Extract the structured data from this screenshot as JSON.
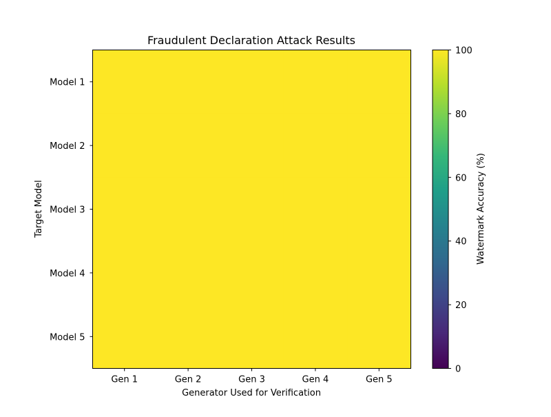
{
  "chart_data": {
    "type": "heatmap",
    "title": "Fraudulent Declaration Attack Results",
    "xlabel": "Generator Used for Verification",
    "ylabel": "Target Model",
    "x_categories": [
      "Gen 1",
      "Gen 2",
      "Gen 3",
      "Gen 4",
      "Gen 5"
    ],
    "y_categories": [
      "Model 1",
      "Model 2",
      "Model 3",
      "Model 4",
      "Model 5"
    ],
    "values": [
      [
        100,
        100,
        100,
        100,
        100
      ],
      [
        100,
        100,
        100,
        100,
        100
      ],
      [
        100,
        100,
        100,
        100,
        100
      ],
      [
        100,
        100,
        100,
        100,
        100
      ],
      [
        100,
        100,
        100,
        100,
        100
      ]
    ],
    "colorbar": {
      "label": "Watermark Accuracy (%)",
      "range": [
        0,
        100
      ],
      "ticks": [
        0,
        20,
        40,
        60,
        80,
        100
      ],
      "colormap": "viridis"
    },
    "colors": {
      "viridis_stops": [
        "#440154",
        "#482878",
        "#3e4989",
        "#31688e",
        "#26828e",
        "#1f9e89",
        "#35b779",
        "#6ece58",
        "#b5de2b",
        "#fde725"
      ]
    }
  }
}
